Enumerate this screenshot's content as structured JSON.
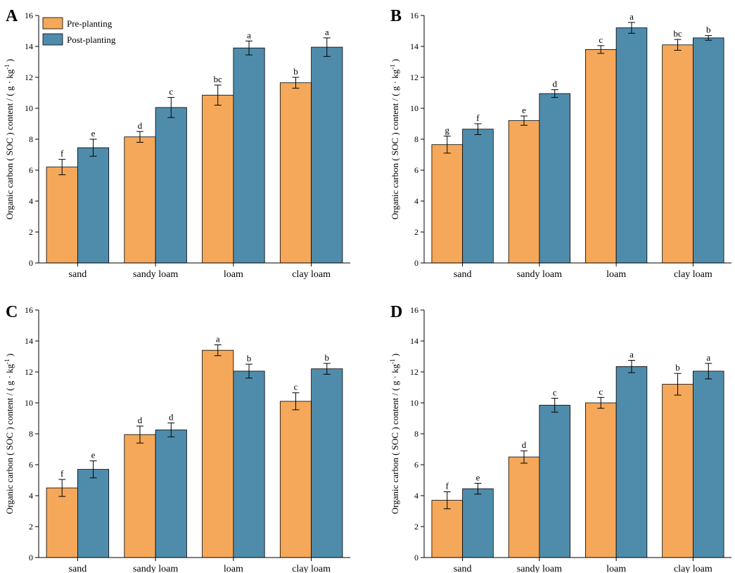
{
  "figure": {
    "colors": {
      "pre": "#F5A85A",
      "post": "#4F8CAB",
      "axis": "#000000"
    },
    "legend": {
      "pre": "Pre-planting",
      "post": "Post-planting"
    },
    "ylabel_prefix": "Organic carbon ( SOC ) content / ( g · kg",
    "ylabel_sup": "-1",
    "ylabel_suffix": " )"
  },
  "chart_data": [
    {
      "panel": "A",
      "type": "bar",
      "categories": [
        "sand",
        "sandy loam",
        "loam",
        "clay loam"
      ],
      "ylim": [
        0,
        16
      ],
      "yticks": [
        0,
        2,
        4,
        6,
        8,
        10,
        12,
        14,
        16
      ],
      "series": [
        {
          "name": "Pre-planting",
          "values": [
            6.2,
            8.15,
            10.85,
            11.65
          ],
          "errors": [
            0.5,
            0.35,
            0.65,
            0.35
          ],
          "labels": [
            "f",
            "d",
            "bc",
            "b"
          ]
        },
        {
          "name": "Post-planting",
          "values": [
            7.45,
            10.05,
            13.9,
            13.95
          ],
          "errors": [
            0.55,
            0.65,
            0.45,
            0.6
          ],
          "labels": [
            "e",
            "c",
            "a",
            "a"
          ]
        }
      ]
    },
    {
      "panel": "B",
      "type": "bar",
      "categories": [
        "sand",
        "sandy loam",
        "loam",
        "clay loam"
      ],
      "ylim": [
        0,
        16
      ],
      "yticks": [
        0,
        2,
        4,
        6,
        8,
        10,
        12,
        14,
        16
      ],
      "series": [
        {
          "name": "Pre-planting",
          "values": [
            7.65,
            9.2,
            13.8,
            14.1
          ],
          "errors": [
            0.55,
            0.3,
            0.25,
            0.35
          ],
          "labels": [
            "g",
            "e",
            "c",
            "bc"
          ]
        },
        {
          "name": "Post-planting",
          "values": [
            8.65,
            10.95,
            15.2,
            14.55
          ],
          "errors": [
            0.35,
            0.25,
            0.35,
            0.15
          ],
          "labels": [
            "f",
            "d",
            "a",
            "b"
          ]
        }
      ]
    },
    {
      "panel": "C",
      "type": "bar",
      "categories": [
        "sand",
        "sandy loam",
        "loam",
        "clay loam"
      ],
      "ylim": [
        0,
        16
      ],
      "yticks": [
        0,
        2,
        4,
        6,
        8,
        10,
        12,
        14,
        16
      ],
      "series": [
        {
          "name": "Pre-planting",
          "values": [
            4.5,
            7.95,
            13.4,
            10.1
          ],
          "errors": [
            0.55,
            0.55,
            0.35,
            0.55
          ],
          "labels": [
            "f",
            "d",
            "a",
            "c"
          ]
        },
        {
          "name": "Post-planting",
          "values": [
            5.7,
            8.25,
            12.05,
            12.2
          ],
          "errors": [
            0.55,
            0.45,
            0.45,
            0.35
          ],
          "labels": [
            "e",
            "d",
            "b",
            "b"
          ]
        }
      ]
    },
    {
      "panel": "D",
      "type": "bar",
      "categories": [
        "sand",
        "sandy loam",
        "loam",
        "clay loam"
      ],
      "ylim": [
        0,
        16
      ],
      "yticks": [
        0,
        2,
        4,
        6,
        8,
        10,
        12,
        14,
        16
      ],
      "series": [
        {
          "name": "Pre-planting",
          "values": [
            3.7,
            6.5,
            10.0,
            11.2
          ],
          "errors": [
            0.55,
            0.4,
            0.35,
            0.7
          ],
          "labels": [
            "f",
            "d",
            "c",
            "b"
          ]
        },
        {
          "name": "Post-planting",
          "values": [
            4.45,
            9.85,
            12.35,
            12.05
          ],
          "errors": [
            0.35,
            0.45,
            0.4,
            0.5
          ],
          "labels": [
            "e",
            "c",
            "a",
            "a"
          ]
        }
      ]
    }
  ]
}
